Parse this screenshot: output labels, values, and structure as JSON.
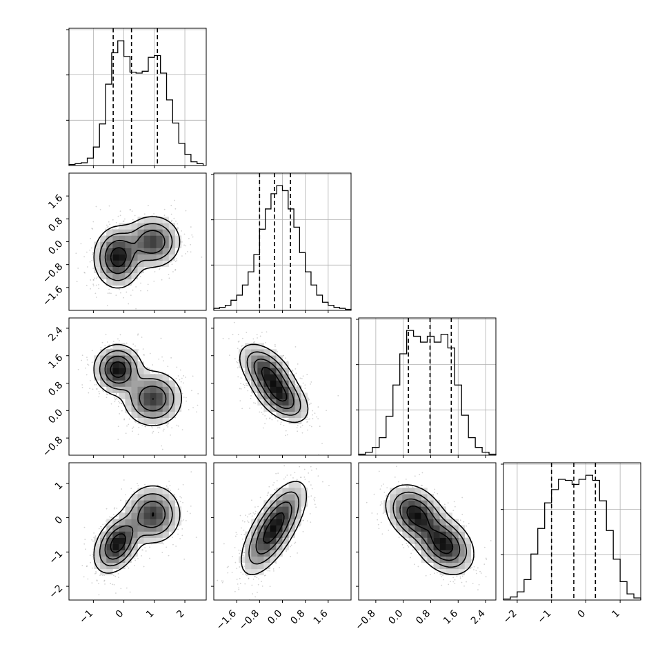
{
  "chart_data": {
    "type": "corner",
    "title": "",
    "grid": true,
    "params": [
      {
        "range": [
          -1.8,
          2.7
        ],
        "ticks": [
          -1,
          0,
          1,
          2
        ],
        "tick_labels": [
          "−1",
          "0",
          "1",
          "2"
        ],
        "quantiles": [
          -0.35,
          0.25,
          1.1
        ],
        "hist": {
          "edges": [
            -1.8,
            -1.6,
            -1.4,
            -1.2,
            -1.0,
            -0.8,
            -0.6,
            -0.4,
            -0.2,
            0.0,
            0.2,
            0.4,
            0.6,
            0.8,
            1.0,
            1.2,
            1.4,
            1.6,
            1.8,
            2.0,
            2.2,
            2.4,
            2.6
          ],
          "counts": [
            1,
            2,
            3,
            8,
            20,
            45,
            88,
            122,
            135,
            118,
            101,
            100,
            102,
            117,
            119,
            100,
            71,
            46,
            24,
            12,
            4,
            2
          ]
        }
      },
      {
        "range": [
          -2.4,
          2.4
        ],
        "ticks": [
          -1.6,
          -0.8,
          0.0,
          0.8,
          1.6
        ],
        "tick_labels": [
          "−1.6",
          "−0.8",
          "0.0",
          "0.8",
          "1.6"
        ],
        "quantiles": [
          -0.8,
          -0.28,
          0.28
        ],
        "hist": {
          "edges": [
            -2.4,
            -2.2,
            -2.0,
            -1.8,
            -1.6,
            -1.4,
            -1.2,
            -1.0,
            -0.8,
            -0.6,
            -0.4,
            -0.2,
            0.0,
            0.2,
            0.4,
            0.6,
            0.8,
            1.0,
            1.2,
            1.4,
            1.6,
            1.8,
            2.0,
            2.2,
            2.4
          ],
          "counts": [
            2,
            3,
            5,
            10,
            15,
            25,
            38,
            55,
            80,
            100,
            115,
            123,
            118,
            100,
            82,
            57,
            38,
            25,
            15,
            8,
            5,
            3,
            2,
            1
          ]
        }
      },
      {
        "range": [
          -1.3,
          2.7
        ],
        "ticks": [
          -0.8,
          0.0,
          0.8,
          1.6,
          2.4
        ],
        "tick_labels": [
          "−0.8",
          "0.0",
          "0.8",
          "1.6",
          "2.4"
        ],
        "quantiles": [
          0.15,
          0.78,
          1.4
        ],
        "hist": {
          "edges": [
            -1.3,
            -1.1,
            -0.9,
            -0.7,
            -0.5,
            -0.3,
            -0.1,
            0.1,
            0.3,
            0.5,
            0.7,
            0.9,
            1.1,
            1.3,
            1.5,
            1.7,
            1.9,
            2.1,
            2.3,
            2.5,
            2.7
          ],
          "counts": [
            1,
            3,
            8,
            18,
            40,
            72,
            104,
            128,
            122,
            116,
            122,
            116,
            124,
            110,
            72,
            41,
            18,
            8,
            3,
            1
          ]
        }
      },
      {
        "range": [
          -2.4,
          1.6
        ],
        "ticks": [
          -2,
          -1,
          0,
          1
        ],
        "tick_labels": [
          "−2",
          "−1",
          "0",
          "1"
        ],
        "quantiles": [
          -1.0,
          -0.35,
          0.28
        ],
        "hist": {
          "edges": [
            -2.4,
            -2.2,
            -2.0,
            -1.8,
            -1.6,
            -1.4,
            -1.2,
            -1.0,
            -0.8,
            -0.6,
            -0.4,
            -0.2,
            0.0,
            0.2,
            0.4,
            0.6,
            0.8,
            1.0,
            1.2,
            1.4,
            1.6
          ],
          "counts": [
            1,
            3,
            8,
            20,
            45,
            70,
            95,
            108,
            118,
            117,
            113,
            118,
            122,
            117,
            97,
            68,
            40,
            18,
            6,
            2
          ]
        }
      }
    ],
    "pairs": [
      {
        "x_param": 0,
        "y_param": 1,
        "modes": [
          {
            "center": [
              -0.2,
              -0.55
            ],
            "sx": 0.38,
            "sy": 0.52,
            "rho": 0.0,
            "weight": 0.55
          },
          {
            "center": [
              0.95,
              0.0
            ],
            "sx": 0.45,
            "sy": 0.45,
            "rho": 0.0,
            "weight": 0.45
          }
        ]
      },
      {
        "x_param": 0,
        "y_param": 2,
        "modes": [
          {
            "center": [
              -0.2,
              1.2
            ],
            "sx": 0.38,
            "sy": 0.35,
            "rho": 0.0,
            "weight": 0.55
          },
          {
            "center": [
              0.95,
              0.35
            ],
            "sx": 0.48,
            "sy": 0.4,
            "rho": 0.0,
            "weight": 0.45
          }
        ]
      },
      {
        "x_param": 1,
        "y_param": 2,
        "modes": [
          {
            "center": [
              -0.55,
              1.15
            ],
            "sx": 0.48,
            "sy": 0.4,
            "rho": -0.5,
            "weight": 0.5
          },
          {
            "center": [
              -0.05,
              0.4
            ],
            "sx": 0.48,
            "sy": 0.38,
            "rho": -0.5,
            "weight": 0.5
          }
        ]
      },
      {
        "x_param": 0,
        "y_param": 3,
        "modes": [
          {
            "center": [
              -0.2,
              -0.75
            ],
            "sx": 0.38,
            "sy": 0.42,
            "rho": 0.4,
            "weight": 0.55
          },
          {
            "center": [
              0.95,
              0.1
            ],
            "sx": 0.45,
            "sy": 0.42,
            "rho": 0.0,
            "weight": 0.45
          }
        ]
      },
      {
        "x_param": 1,
        "y_param": 3,
        "modes": [
          {
            "center": [
              -0.55,
              -0.65
            ],
            "sx": 0.48,
            "sy": 0.55,
            "rho": 0.6,
            "weight": 0.5
          },
          {
            "center": [
              -0.05,
              0.05
            ],
            "sx": 0.48,
            "sy": 0.55,
            "rho": 0.6,
            "weight": 0.5
          }
        ]
      },
      {
        "x_param": 2,
        "y_param": 3,
        "modes": [
          {
            "center": [
              0.35,
              0.1
            ],
            "sx": 0.42,
            "sy": 0.42,
            "rho": -0.3,
            "weight": 0.5
          },
          {
            "center": [
              1.2,
              -0.8
            ],
            "sx": 0.42,
            "sy": 0.42,
            "rho": -0.3,
            "weight": 0.5
          }
        ]
      }
    ],
    "contour_levels": [
      0.5,
      1.0,
      1.5,
      2.0
    ]
  }
}
